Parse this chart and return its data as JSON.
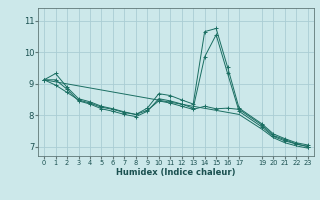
{
  "xlabel": "Humidex (Indice chaleur)",
  "bg_color": "#cce8ea",
  "grid_color": "#aacdd4",
  "line_color": "#1a6e62",
  "xlim": [
    -0.5,
    23.5
  ],
  "ylim": [
    6.7,
    11.4
  ],
  "xticks": [
    0,
    1,
    2,
    3,
    4,
    5,
    6,
    7,
    8,
    9,
    10,
    11,
    12,
    13,
    14,
    15,
    16,
    17,
    19,
    20,
    21,
    22,
    23
  ],
  "yticks": [
    7,
    8,
    9,
    10,
    11
  ],
  "line1_x": [
    0,
    1,
    2,
    3,
    4,
    5,
    6,
    7,
    8,
    9,
    10,
    11,
    12,
    13,
    14,
    15,
    16,
    17,
    19,
    20,
    21,
    22,
    23
  ],
  "line1_y": [
    9.12,
    9.32,
    8.88,
    8.52,
    8.42,
    8.28,
    8.2,
    8.1,
    8.02,
    8.22,
    8.68,
    8.62,
    8.48,
    8.35,
    10.65,
    10.75,
    9.52,
    8.22,
    7.72,
    7.4,
    7.25,
    7.12,
    7.05
  ],
  "line2_x": [
    0,
    1,
    2,
    3,
    4,
    5,
    6,
    7,
    8,
    9,
    10,
    11,
    12,
    13,
    14,
    15,
    16,
    17,
    19,
    20,
    21,
    22,
    23
  ],
  "line2_y": [
    9.12,
    9.12,
    8.82,
    8.45,
    8.35,
    8.2,
    8.12,
    8.02,
    7.95,
    8.12,
    8.52,
    8.45,
    8.35,
    8.22,
    9.85,
    10.55,
    9.32,
    8.12,
    7.62,
    7.32,
    7.18,
    7.08,
    7.0
  ],
  "line3_x": [
    0,
    17,
    19,
    20,
    21,
    22,
    23
  ],
  "line3_y": [
    9.12,
    8.02,
    7.55,
    7.28,
    7.12,
    7.02,
    6.95
  ],
  "line4_x": [
    0,
    1,
    2,
    3,
    4,
    5,
    6,
    7,
    8,
    9,
    10,
    11,
    12,
    13,
    14,
    15,
    16,
    17,
    19,
    20,
    21,
    22,
    23
  ],
  "line4_y": [
    9.12,
    8.95,
    8.72,
    8.48,
    8.38,
    8.25,
    8.18,
    8.08,
    8.02,
    8.15,
    8.45,
    8.38,
    8.28,
    8.18,
    8.28,
    8.2,
    8.22,
    8.18,
    7.68,
    7.35,
    7.22,
    7.08,
    7.0
  ]
}
